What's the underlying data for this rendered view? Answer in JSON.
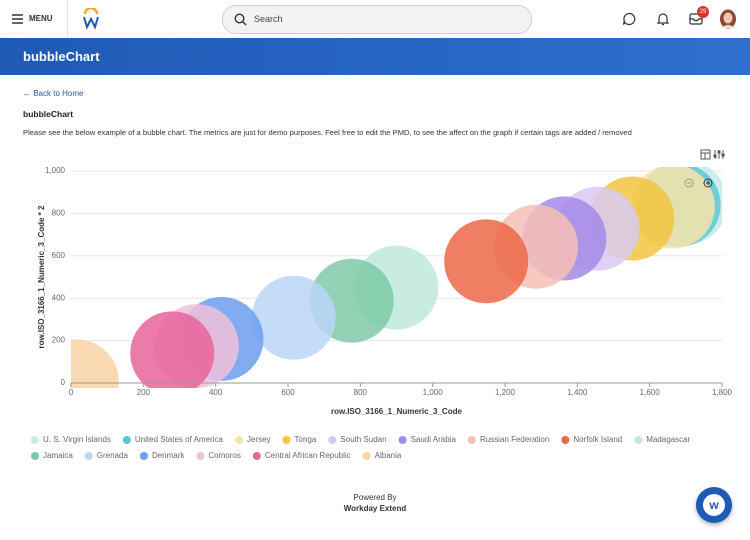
{
  "header": {
    "menu": "MENU",
    "search_placeholder": "Search",
    "inbox_badge": "29"
  },
  "banner": {
    "title": "bubbleChart"
  },
  "back_link": "← Back to Home",
  "heading": "bubbleChart",
  "description": "Please see the below example of a bubble chart. The metrics are just for demo purposes. Feel free to edit the PMD, to see the affect on the graph if certain tags are added / removed",
  "chart_data": {
    "type": "bubble",
    "x_label": "row.ISO_3166_1_Numeric_3_Code",
    "y_label": "row.ISO_3166_1_Numeric_3_Code * 2",
    "xlim": [
      0,
      1800
    ],
    "ylim": [
      0,
      1000
    ],
    "xticks": [
      0,
      200,
      400,
      600,
      800,
      {
        "value": 1000,
        "label": "1,000"
      },
      {
        "value": 1200,
        "label": "1,200"
      },
      {
        "value": 1400,
        "label": "1,400"
      },
      {
        "value": 1600,
        "label": "1,600"
      },
      {
        "value": 1800,
        "label": "1,800"
      }
    ],
    "yticks": [
      0,
      200,
      400,
      600,
      800,
      {
        "value": 1000,
        "label": "1,000"
      }
    ],
    "series": [
      {
        "name": "U. S. Virgin Islands",
        "color": "#c6ebeb",
        "x": [
          1700
        ],
        "values": [
          850
        ]
      },
      {
        "name": "United States of America",
        "color": "#5cc7d3",
        "x": [
          1680
        ],
        "values": [
          840
        ]
      },
      {
        "name": "Jersey",
        "color": "#f8e4a8",
        "x": [
          1664
        ],
        "values": [
          832
        ]
      },
      {
        "name": "Tonga",
        "color": "#f2c440",
        "x": [
          1552
        ],
        "values": [
          776
        ]
      },
      {
        "name": "South Sudan",
        "color": "#d8c9f1",
        "x": [
          1456
        ],
        "values": [
          728
        ]
      },
      {
        "name": "Saudi Arabia",
        "color": "#a58ae8",
        "x": [
          1364
        ],
        "values": [
          682
        ]
      },
      {
        "name": "Russian Federation",
        "color": "#f6c0b5",
        "x": [
          1286
        ],
        "values": [
          643
        ]
      },
      {
        "name": "Norfolk Island",
        "color": "#ec6848",
        "x": [
          1148
        ],
        "values": [
          574
        ]
      },
      {
        "name": "Madagascar",
        "color": "#bfe9da",
        "x": [
          900
        ],
        "values": [
          450
        ]
      },
      {
        "name": "Jamaica",
        "color": "#7dcaa6",
        "x": [
          776
        ],
        "values": [
          388
        ]
      },
      {
        "name": "Grenada",
        "color": "#bad6f7",
        "x": [
          616
        ],
        "values": [
          308
        ]
      },
      {
        "name": "Denmark",
        "color": "#6c9eee",
        "x": [
          416
        ],
        "values": [
          208
        ]
      },
      {
        "name": "Comoros",
        "color": "#f1c0da",
        "x": [
          348
        ],
        "values": [
          174
        ]
      },
      {
        "name": "Central African Republic",
        "color": "#e8649a",
        "x": [
          280
        ],
        "values": [
          140
        ]
      },
      {
        "name": "Albania",
        "color": "#f8d4a6",
        "x": [
          16
        ],
        "values": [
          8
        ]
      }
    ],
    "grid": true,
    "legend": "bottom"
  },
  "footer": {
    "powered_by": "Powered By",
    "brand": "Workday Extend"
  }
}
